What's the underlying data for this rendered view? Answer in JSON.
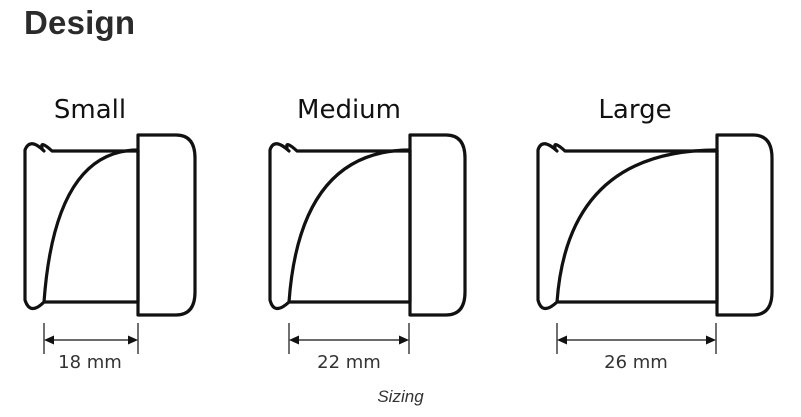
{
  "page": {
    "heading": "Design",
    "caption": "Sizing"
  },
  "figure": {
    "items": [
      {
        "label": "Small",
        "measurement": "18 mm"
      },
      {
        "label": "Medium",
        "measurement": "22 mm"
      },
      {
        "label": "Large",
        "measurement": "26 mm"
      }
    ]
  }
}
